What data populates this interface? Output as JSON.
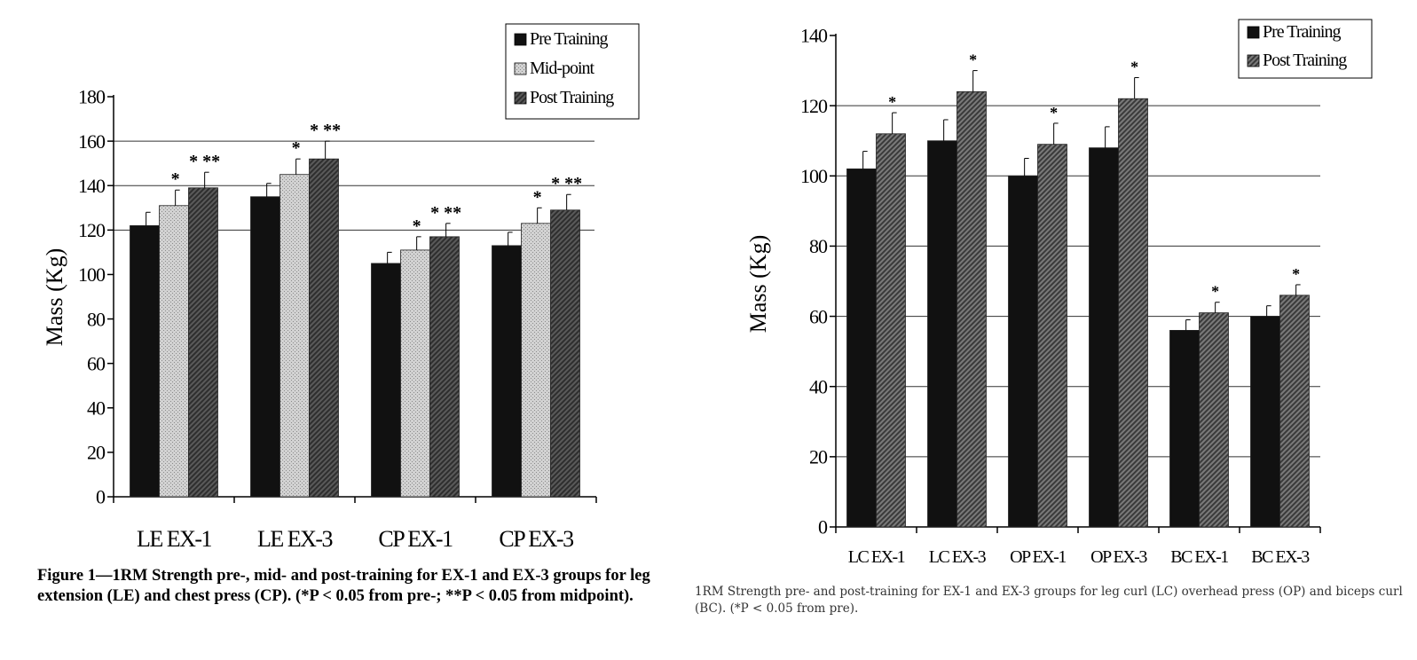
{
  "chart_data": [
    {
      "type": "bar",
      "ylabel": "Mass (Kg)",
      "ylim": [
        0,
        180
      ],
      "yticks": [
        "0",
        "20",
        "40",
        "60",
        "80",
        "100",
        "120",
        "140",
        "160",
        "180"
      ],
      "gridlines": [
        120,
        140,
        160
      ],
      "categories": [
        "LE EX-1",
        "LE EX-3",
        "CP EX-1",
        "CP EX-3"
      ],
      "legend_position": "top-right",
      "series": [
        {
          "name": "Pre Training",
          "color": "#111111",
          "values": [
            122,
            135,
            105,
            113
          ],
          "errors": [
            6,
            6,
            5,
            6
          ]
        },
        {
          "name": "Mid-point",
          "color": "#c8c8c8",
          "values": [
            131,
            145,
            111,
            123
          ],
          "errors": [
            7,
            7,
            6,
            7
          ]
        },
        {
          "name": "Post Training",
          "color": "#444444",
          "values": [
            139,
            152,
            117,
            129
          ],
          "errors": [
            7,
            8,
            6,
            7
          ]
        }
      ],
      "annotations": [
        {
          "category": 0,
          "series": 1,
          "text": "*"
        },
        {
          "category": 0,
          "series": 2,
          "text": "* **"
        },
        {
          "category": 1,
          "series": 1,
          "text": "*"
        },
        {
          "category": 1,
          "series": 2,
          "text": "* **"
        },
        {
          "category": 2,
          "series": 1,
          "text": "*"
        },
        {
          "category": 2,
          "series": 2,
          "text": "* **"
        },
        {
          "category": 3,
          "series": 1,
          "text": "*"
        },
        {
          "category": 3,
          "series": 2,
          "text": "* **"
        }
      ]
    },
    {
      "type": "bar",
      "ylabel": "Mass (Kg)",
      "ylim": [
        0,
        140
      ],
      "yticks": [
        "0",
        "20",
        "40",
        "60",
        "80",
        "100",
        "120",
        "140"
      ],
      "gridlines": [
        20,
        40,
        60,
        80,
        100,
        120
      ],
      "categories": [
        "LC EX-1",
        "LC EX-3",
        "OP EX-1",
        "OP EX-3",
        "BC EX-1",
        "BC EX-3"
      ],
      "legend_position": "top-right",
      "series": [
        {
          "name": "Pre Training",
          "color": "#111111",
          "values": [
            102,
            110,
            100,
            108,
            56,
            60
          ],
          "errors": [
            5,
            6,
            5,
            6,
            3,
            3
          ]
        },
        {
          "name": "Post Training",
          "color": "#555555",
          "values": [
            112,
            124,
            109,
            122,
            61,
            66
          ],
          "errors": [
            6,
            6,
            6,
            6,
            3,
            3
          ]
        }
      ],
      "annotations": [
        {
          "category": 0,
          "series": 1,
          "text": "*"
        },
        {
          "category": 1,
          "series": 1,
          "text": "*"
        },
        {
          "category": 2,
          "series": 1,
          "text": "*"
        },
        {
          "category": 3,
          "series": 1,
          "text": "*"
        },
        {
          "category": 4,
          "series": 1,
          "text": "*"
        },
        {
          "category": 5,
          "series": 1,
          "text": "*"
        }
      ]
    }
  ],
  "captions": {
    "left": "Figure 1—1RM Strength pre-, mid- and post-training for EX-1 and EX-3 groups for leg extension (LE) and chest press (CP). (*P < 0.05 from pre-; **P < 0.05 from midpoint).",
    "right": "1RM Strength pre- and post-training for EX-1 and EX-3 groups for leg curl (LC) overhead press (OP) and biceps curl (BC). (*P < 0.05 from pre)."
  }
}
